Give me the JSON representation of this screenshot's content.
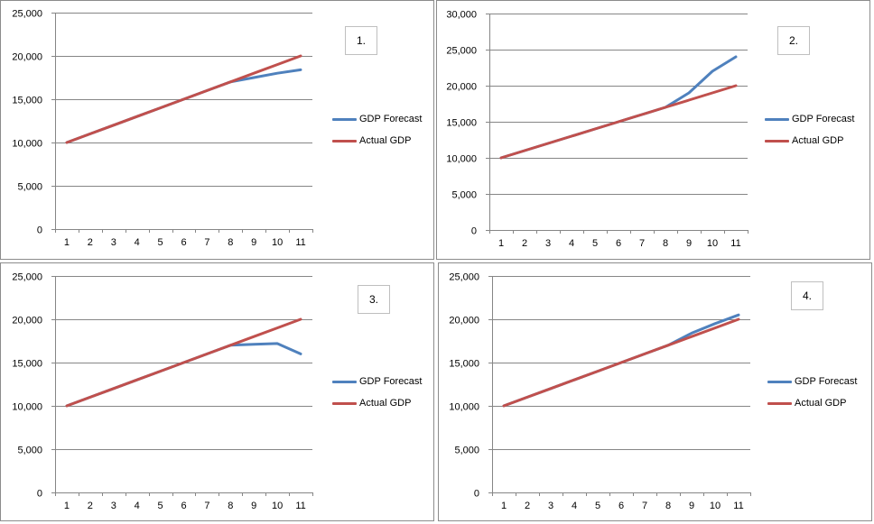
{
  "chart_data": [
    {
      "type": "line",
      "title": "1.",
      "x": [
        1,
        2,
        3,
        4,
        5,
        6,
        7,
        8,
        9,
        10,
        11
      ],
      "ylim": [
        0,
        25000
      ],
      "yticks": [
        0,
        5000,
        10000,
        15000,
        20000,
        25000
      ],
      "ytick_labels": [
        "0",
        "5,000",
        "10,000",
        "15,000",
        "20,000",
        "25,000"
      ],
      "grid": true,
      "legend_position": "right",
      "series": [
        {
          "name": "GDP Forecast",
          "color": "#4f81bd",
          "values": [
            10000,
            11000,
            12000,
            13000,
            14000,
            15000,
            16000,
            17000,
            17500,
            18000,
            18400
          ]
        },
        {
          "name": "Actual GDP",
          "color": "#c0504d",
          "values": [
            10000,
            11000,
            12000,
            13000,
            14000,
            15000,
            16000,
            17000,
            18000,
            19000,
            20000
          ]
        }
      ]
    },
    {
      "type": "line",
      "title": "2.",
      "x": [
        1,
        2,
        3,
        4,
        5,
        6,
        7,
        8,
        9,
        10,
        11
      ],
      "ylim": [
        0,
        30000
      ],
      "yticks": [
        0,
        5000,
        10000,
        15000,
        20000,
        25000,
        30000
      ],
      "ytick_labels": [
        "0",
        "5,000",
        "10,000",
        "15,000",
        "20,000",
        "25,000",
        "30,000"
      ],
      "grid": true,
      "legend_position": "right",
      "series": [
        {
          "name": "GDP Forecast",
          "color": "#4f81bd",
          "values": [
            10000,
            11000,
            12000,
            13000,
            14000,
            15000,
            16000,
            17000,
            19000,
            22000,
            24000
          ]
        },
        {
          "name": "Actual GDP",
          "color": "#c0504d",
          "values": [
            10000,
            11000,
            12000,
            13000,
            14000,
            15000,
            16000,
            17000,
            18000,
            19000,
            20000
          ]
        }
      ]
    },
    {
      "type": "line",
      "title": "3.",
      "x": [
        1,
        2,
        3,
        4,
        5,
        6,
        7,
        8,
        9,
        10,
        11
      ],
      "ylim": [
        0,
        25000
      ],
      "yticks": [
        0,
        5000,
        10000,
        15000,
        20000,
        25000
      ],
      "ytick_labels": [
        "0",
        "5,000",
        "10,000",
        "15,000",
        "20,000",
        "25,000"
      ],
      "grid": true,
      "legend_position": "right",
      "series": [
        {
          "name": "GDP Forecast",
          "color": "#4f81bd",
          "values": [
            10000,
            11000,
            12000,
            13000,
            14000,
            15000,
            16000,
            17000,
            17100,
            17200,
            16000
          ]
        },
        {
          "name": "Actual GDP",
          "color": "#c0504d",
          "values": [
            10000,
            11000,
            12000,
            13000,
            14000,
            15000,
            16000,
            17000,
            18000,
            19000,
            20000
          ]
        }
      ]
    },
    {
      "type": "line",
      "title": "4.",
      "x": [
        1,
        2,
        3,
        4,
        5,
        6,
        7,
        8,
        9,
        10,
        11
      ],
      "ylim": [
        0,
        25000
      ],
      "yticks": [
        0,
        5000,
        10000,
        15000,
        20000,
        25000
      ],
      "ytick_labels": [
        "0",
        "5,000",
        "10,000",
        "15,000",
        "20,000",
        "25,000"
      ],
      "grid": true,
      "legend_position": "right",
      "series": [
        {
          "name": "GDP Forecast",
          "color": "#4f81bd",
          "values": [
            10000,
            11000,
            12000,
            13000,
            14000,
            15000,
            16000,
            17000,
            18400,
            19500,
            20500
          ]
        },
        {
          "name": "Actual GDP",
          "color": "#c0504d",
          "values": [
            10000,
            11000,
            12000,
            13000,
            14000,
            15000,
            16000,
            17000,
            18000,
            19000,
            20000
          ]
        }
      ]
    }
  ]
}
